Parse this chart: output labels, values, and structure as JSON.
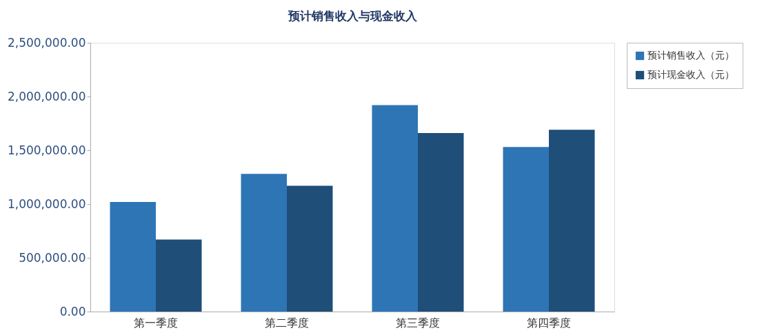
{
  "chart_data": {
    "type": "bar",
    "title": "预计销售收入与现金收入",
    "categories": [
      "第一季度",
      "第二季度",
      "第三季度",
      "第四季度"
    ],
    "series": [
      {
        "name": "预计销售收入（元）",
        "color": "#2e75b6",
        "values": [
          1020000,
          1280000,
          1920000,
          1530000
        ]
      },
      {
        "name": "预计现金收入（元）",
        "color": "#1f4e79",
        "values": [
          670000,
          1170000,
          1660000,
          1690000
        ]
      }
    ],
    "ylim": [
      0,
      2500000
    ],
    "yticks": [
      {
        "value": 0,
        "label": "0.00"
      },
      {
        "value": 500000,
        "label": "500,000.00"
      },
      {
        "value": 1000000,
        "label": "1,000,000.00"
      },
      {
        "value": 1500000,
        "label": "1,500,000.00"
      },
      {
        "value": 2000000,
        "label": "2,000,000.00"
      },
      {
        "value": 2500000,
        "label": "2,500,000.00"
      }
    ],
    "grid": false,
    "legend": "right"
  }
}
